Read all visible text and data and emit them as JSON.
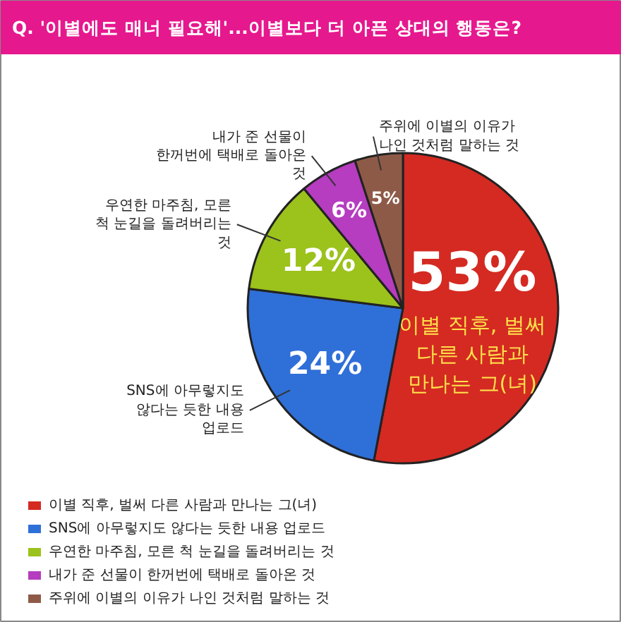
{
  "chart_data": {
    "type": "pie",
    "title": "Q. '이별에도 매너 필요해'...이별보다 더 아픈 상대의 행동은?",
    "categories": [
      "이별 직후, 벌써 다른 사람과 만나는 그(녀)",
      "SNS에 아무렇지도 않다는 듯한 내용 업로드",
      "우연한 마주침, 모른 척 눈길을 돌려버리는 것",
      "내가 준 선물이 한꺼번에 택배로 돌아온 것",
      "주위에 이별의 이유가 나인 것처럼 말하는 것"
    ],
    "values": [
      53,
      24,
      12,
      6,
      5
    ],
    "value_labels": [
      "53%",
      "24%",
      "12%",
      "6%",
      "5%"
    ],
    "colors": [
      "#d42a22",
      "#2f6fd8",
      "#9cc21c",
      "#b63cc0",
      "#8e5a48"
    ],
    "legend": "bottom"
  }
}
